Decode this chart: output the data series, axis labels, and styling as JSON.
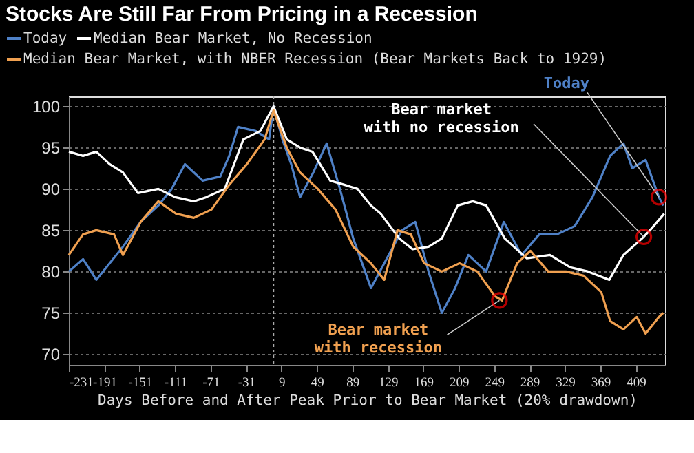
{
  "chart_data": {
    "type": "line",
    "title": "Stocks Are Still Far From Pricing in a Recession",
    "xlabel": "Days Before and After Peak Prior to Bear Market (20% drawdown)",
    "xlim": [
      -231,
      442
    ],
    "xticks": [
      -231,
      -191,
      -151,
      -111,
      -71,
      -31,
      9,
      49,
      89,
      129,
      169,
      209,
      249,
      289,
      329,
      369,
      409
    ],
    "ylim": [
      68.7,
      101.2
    ],
    "yticks": [
      70,
      75,
      80,
      85,
      90,
      95,
      100
    ],
    "grid": "y",
    "legend": "top left",
    "line_style": "solid",
    "marker": "none",
    "ref_lines": [
      {
        "axis": "x",
        "value": 0,
        "color": "#aaaaaa",
        "line_style": "dotted"
      }
    ],
    "series": [
      {
        "name": "Today",
        "color": "#4f81c7",
        "x": [
          -231,
          -215,
          -200,
          -185,
          -170,
          -150,
          -130,
          -115,
          -100,
          -80,
          -60,
          -50,
          -40,
          -20,
          -5,
          0,
          10,
          20,
          30,
          45,
          60,
          75,
          90,
          110,
          125,
          145,
          160,
          175,
          190,
          205,
          220,
          240,
          260,
          280,
          300,
          320,
          340,
          360,
          380,
          395,
          405,
          420,
          435,
          440
        ],
        "values": [
          80,
          81.5,
          79,
          81,
          83,
          86,
          88,
          90,
          93,
          91,
          91.5,
          94,
          97.5,
          97,
          96,
          100,
          96,
          93,
          89,
          92,
          95.5,
          90,
          84,
          78,
          81,
          85,
          86,
          80,
          75,
          78,
          82,
          80,
          86,
          82,
          84.5,
          84.5,
          85.5,
          89,
          94,
          95.5,
          92.5,
          93.5,
          89,
          88
        ]
      },
      {
        "name": "Median Bear Market, No Recession",
        "color": "#ffffff",
        "x": [
          -231,
          -215,
          -200,
          -185,
          -170,
          -153,
          -130,
          -111,
          -90,
          -76,
          -55,
          -34,
          -15,
          0,
          15,
          30,
          44,
          64,
          80,
          95,
          110,
          121,
          142,
          157,
          175,
          190,
          208,
          225,
          240,
          261,
          286,
          312,
          335,
          355,
          379,
          395,
          416,
          425,
          441
        ],
        "values": [
          94.5,
          94,
          94.5,
          93,
          92,
          89.5,
          90,
          89,
          88.5,
          89,
          90,
          96,
          97,
          100,
          96,
          95,
          94.5,
          91,
          90.5,
          90,
          88,
          87,
          84,
          82.7,
          83,
          84,
          88,
          88.5,
          88,
          84,
          81.6,
          82,
          80.5,
          80,
          79,
          82,
          84,
          85,
          87
        ]
      },
      {
        "name": "Median Bear Market, with NBER Recession (Bear Markets Back to 1929)",
        "color": "#f0a050",
        "x": [
          -231,
          -215,
          -200,
          -180,
          -170,
          -150,
          -130,
          -110,
          -90,
          -70,
          -50,
          -30,
          -10,
          0,
          15,
          30,
          50,
          70,
          90,
          110,
          125,
          140,
          155,
          170,
          190,
          210,
          230,
          250,
          258,
          275,
          290,
          310,
          330,
          350,
          370,
          380,
          395,
          410,
          420,
          435,
          440
        ],
        "values": [
          82,
          84.5,
          85,
          84.5,
          82,
          86,
          88.5,
          87,
          86.5,
          87.5,
          90.5,
          93,
          96,
          99.5,
          95,
          92,
          90,
          87.5,
          83,
          81,
          79,
          85,
          84.5,
          81,
          80,
          81,
          80,
          77,
          76.5,
          81,
          82.5,
          80,
          80,
          79.5,
          77.5,
          74,
          73,
          74.5,
          72.5,
          74.5,
          75
        ]
      }
    ],
    "annotations": [
      {
        "text": "Today",
        "x": 435,
        "y": 89
      },
      {
        "text": "Bear market\nwith no recession",
        "x": 418,
        "y": 84.2
      },
      {
        "text": "Bear market\nwith recession",
        "x": 255,
        "y": 76.5
      }
    ]
  }
}
